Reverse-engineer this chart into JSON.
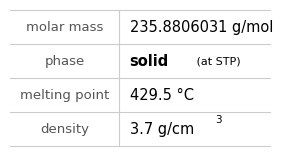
{
  "rows": [
    {
      "label": "molar mass",
      "value": "235.8806031 g/mol",
      "value_style": "normal"
    },
    {
      "label": "phase",
      "value": "solid",
      "value_suffix": " (at STP)",
      "value_style": "bold"
    },
    {
      "label": "melting point",
      "value": "429.5 °C",
      "value_style": "normal"
    },
    {
      "label": "density",
      "value": "3.7 g/cm",
      "value_superscript": "3",
      "value_style": "normal"
    }
  ],
  "col_split": 0.42,
  "bg_color": "#ffffff",
  "grid_color": "#cccccc",
  "label_color": "#555555",
  "value_color": "#000000",
  "label_fontsize": 9.5,
  "value_fontsize": 10.5,
  "suffix_fontsize": 8.0,
  "superscript_fontsize": 7.5
}
